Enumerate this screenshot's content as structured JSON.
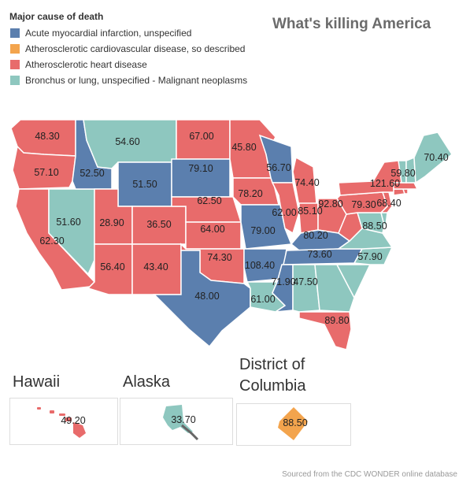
{
  "title": "What's killing America",
  "legend": {
    "title": "Major cause of death",
    "items": [
      {
        "label": "Acute myocardial infarction, unspecified",
        "color": "#5b7fae"
      },
      {
        "label": "Atherosclerotic cardiovascular disease, so described",
        "color": "#f3a44d"
      },
      {
        "label": "Atherosclerotic heart disease",
        "color": "#e86b6b"
      },
      {
        "label": "Bronchus or lung, unspecified - Malignant neoplasms",
        "color": "#8ec7bf"
      }
    ]
  },
  "colors": {
    "ami": "#5b7fae",
    "ascvd": "#f3a44d",
    "ahd": "#e86b6b",
    "lung": "#8ec7bf"
  },
  "states": [
    {
      "code": "WA",
      "cause": "ahd",
      "value": "48.30"
    },
    {
      "code": "OR",
      "cause": "ahd",
      "value": "57.10"
    },
    {
      "code": "CA",
      "cause": "ahd",
      "value": "62.30"
    },
    {
      "code": "NV",
      "cause": "lung",
      "value": "51.60"
    },
    {
      "code": "ID",
      "cause": "ami",
      "value": "52.50"
    },
    {
      "code": "MT",
      "cause": "lung",
      "value": "54.60"
    },
    {
      "code": "WY",
      "cause": "ami",
      "value": "51.50"
    },
    {
      "code": "UT",
      "cause": "ahd",
      "value": "28.90"
    },
    {
      "code": "AZ",
      "cause": "ahd",
      "value": "56.40"
    },
    {
      "code": "CO",
      "cause": "ahd",
      "value": "36.50"
    },
    {
      "code": "NM",
      "cause": "ahd",
      "value": "43.40"
    },
    {
      "code": "ND",
      "cause": "ahd",
      "value": "67.00"
    },
    {
      "code": "SD",
      "cause": "ami",
      "value": "79.10"
    },
    {
      "code": "NE",
      "cause": "ahd",
      "value": "62.50"
    },
    {
      "code": "KS",
      "cause": "ahd",
      "value": "64.00"
    },
    {
      "code": "OK",
      "cause": "ahd",
      "value": "74.30"
    },
    {
      "code": "TX",
      "cause": "ami",
      "value": "48.00"
    },
    {
      "code": "MN",
      "cause": "ahd",
      "value": "45.80"
    },
    {
      "code": "IA",
      "cause": "ahd",
      "value": "78.20"
    },
    {
      "code": "MO",
      "cause": "ami",
      "value": "79.00"
    },
    {
      "code": "AR",
      "cause": "ami",
      "value": "108.40"
    },
    {
      "code": "LA",
      "cause": "lung",
      "value": "61.00"
    },
    {
      "code": "WI",
      "cause": "ami",
      "value": "56.70"
    },
    {
      "code": "IL",
      "cause": "ahd",
      "value": "62.00"
    },
    {
      "code": "MI",
      "cause": "ahd",
      "value": "74.40"
    },
    {
      "code": "IN",
      "cause": "ahd",
      "value": "85.10"
    },
    {
      "code": "OH",
      "cause": "ahd",
      "value": "92.80"
    },
    {
      "code": "KY",
      "cause": "ami",
      "value": "80.20"
    },
    {
      "code": "TN",
      "cause": "ami",
      "value": "73.60"
    },
    {
      "code": "MS",
      "cause": "ami",
      "value": "71.90"
    },
    {
      "code": "AL",
      "cause": "lung",
      "value": "47.50"
    },
    {
      "code": "GA",
      "cause": "lung",
      "value": "47.50"
    },
    {
      "code": "FL",
      "cause": "ahd",
      "value": "89.80"
    },
    {
      "code": "SC",
      "cause": "lung",
      "value": "57.90"
    },
    {
      "code": "NC",
      "cause": "lung",
      "value": "57.90"
    },
    {
      "code": "VA",
      "cause": "lung",
      "value": "57.90"
    },
    {
      "code": "WV",
      "cause": "ahd",
      "value": "92.80"
    },
    {
      "code": "MD",
      "cause": "lung",
      "value": "88.50"
    },
    {
      "code": "DE",
      "cause": "lung",
      "value": "88.50"
    },
    {
      "code": "PA",
      "cause": "ahd",
      "value": "79.30"
    },
    {
      "code": "NJ",
      "cause": "ahd",
      "value": "68.40"
    },
    {
      "code": "NY",
      "cause": "ahd",
      "value": "121.60"
    },
    {
      "code": "CT",
      "cause": "ahd",
      "value": "68.40"
    },
    {
      "code": "RI",
      "cause": "ahd",
      "value": "68.40"
    },
    {
      "code": "MA",
      "cause": "ahd",
      "value": "68.40"
    },
    {
      "code": "VT",
      "cause": "lung",
      "value": "59.80"
    },
    {
      "code": "NH",
      "cause": "lung",
      "value": "59.80"
    },
    {
      "code": "ME",
      "cause": "lung",
      "value": "70.40"
    }
  ],
  "insets": {
    "hawaii": {
      "title": "Hawaii",
      "cause": "ahd",
      "value": "49.20"
    },
    "alaska": {
      "title": "Alaska",
      "cause": "lung",
      "value": "33.70"
    },
    "dc": {
      "title": "District of Columbia",
      "cause": "ascvd",
      "value": "88.50"
    }
  },
  "source": "Sourced from the CDC WONDER online database"
}
